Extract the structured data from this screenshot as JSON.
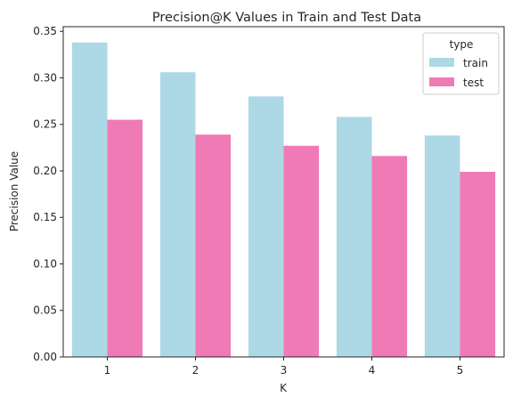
{
  "chart_data": {
    "type": "bar",
    "title": "Precision@K Values in Train and Test Data",
    "xlabel": "K",
    "ylabel": "Precision Value",
    "categories": [
      "1",
      "2",
      "3",
      "4",
      "5"
    ],
    "ylim": [
      0,
      0.355
    ],
    "yticks": [
      "0.00",
      "0.05",
      "0.10",
      "0.15",
      "0.20",
      "0.25",
      "0.30",
      "0.35"
    ],
    "ytick_values": [
      0,
      0.05,
      0.1,
      0.15,
      0.2,
      0.25,
      0.3,
      0.35
    ],
    "grid": false,
    "legend": {
      "title": "type",
      "placement": "top-right"
    },
    "series": [
      {
        "name": "train",
        "color": "#add8e6",
        "values": [
          0.338,
          0.306,
          0.28,
          0.258,
          0.238
        ]
      },
      {
        "name": "test",
        "color": "#f07ab5",
        "values": [
          0.255,
          0.239,
          0.227,
          0.216,
          0.199
        ]
      }
    ]
  }
}
